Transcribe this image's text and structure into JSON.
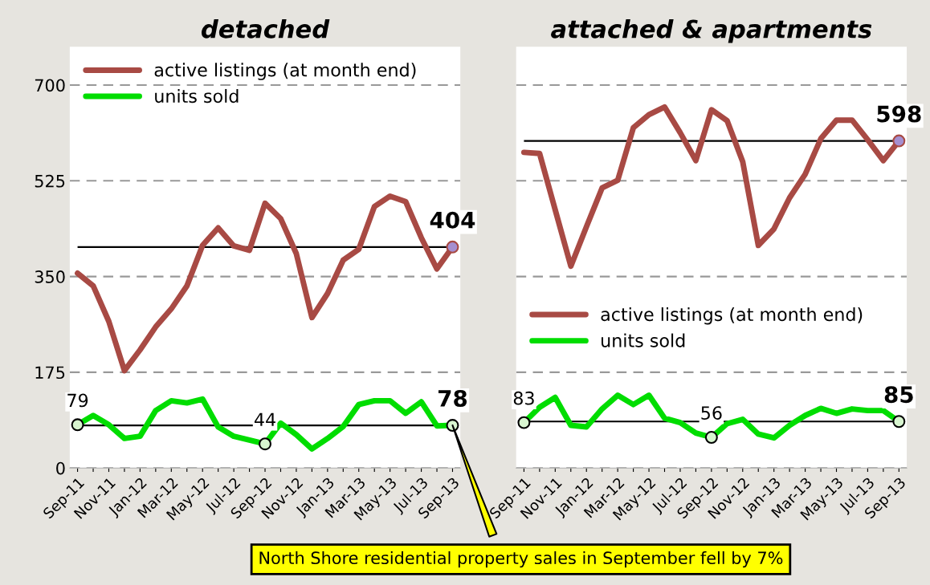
{
  "chart_data": [
    {
      "type": "line",
      "title": "detached",
      "categories": [
        "Sep-11",
        null,
        "Nov-11",
        null,
        "Jan-12",
        null,
        "Mar-12",
        null,
        "May-12",
        null,
        "Jul-12",
        null,
        "Sep-12",
        null,
        "Nov-12",
        null,
        "Jan-13",
        null,
        "Mar-13",
        null,
        "May-13",
        null,
        "Jul-13",
        null,
        "Sep-13"
      ],
      "series": [
        {
          "name": "active listings (at month end)",
          "color": "#a84a44",
          "values": [
            356,
            333,
            268,
            178,
            216,
            258,
            291,
            333,
            407,
            439,
            406,
            398,
            484,
            456,
            392,
            275,
            319,
            380,
            400,
            478,
            497,
            487,
            421,
            364,
            404
          ],
          "value_labels": [
            null,
            null,
            null,
            null,
            null,
            null,
            null,
            null,
            null,
            null,
            null,
            null,
            null,
            null,
            null,
            null,
            null,
            null,
            null,
            null,
            null,
            null,
            null,
            null,
            "404"
          ]
        },
        {
          "name": "units sold",
          "color": "#00dd00",
          "values": [
            79,
            96,
            79,
            54,
            58,
            105,
            123,
            119,
            126,
            75,
            58,
            51,
            44,
            82,
            61,
            35,
            54,
            76,
            116,
            123,
            123,
            100,
            121,
            77,
            78
          ],
          "value_labels": [
            "79",
            null,
            null,
            null,
            null,
            null,
            null,
            null,
            null,
            null,
            null,
            null,
            "44",
            null,
            null,
            null,
            null,
            null,
            null,
            null,
            null,
            null,
            null,
            null,
            "78"
          ]
        }
      ],
      "ylim": [
        0,
        770
      ],
      "yticks": [
        0,
        175,
        350,
        525,
        700
      ],
      "grid": "y",
      "legend": "upper left",
      "line_style": "solid",
      "ref_lines": [
        {
          "axis": "y",
          "value": 404,
          "color": "#000000"
        },
        {
          "axis": "y",
          "value": 78,
          "color": "#000000"
        }
      ],
      "annotations": [
        "North Shore residential property sales in September fell by 7%"
      ]
    },
    {
      "type": "line",
      "title": "attached & apartments",
      "categories": [
        "Sep-11",
        null,
        "Nov-11",
        null,
        "Jan-12",
        null,
        "Mar-12",
        null,
        "May-12",
        null,
        "Jul-12",
        null,
        "Sep-12",
        null,
        "Nov-12",
        null,
        "Jan-13",
        null,
        "Mar-13",
        null,
        "May-13",
        null,
        "Jul-13",
        null,
        "Sep-13"
      ],
      "series": [
        {
          "name": "active listings (at month end)",
          "color": "#a84a44",
          "values": [
            577,
            575,
            472,
            369,
            441,
            512,
            526,
            622,
            646,
            660,
            613,
            562,
            655,
            635,
            560,
            407,
            437,
            494,
            537,
            602,
            636,
            636,
            600,
            562,
            598
          ],
          "value_labels": [
            null,
            null,
            null,
            null,
            null,
            null,
            null,
            null,
            null,
            null,
            null,
            null,
            null,
            null,
            null,
            null,
            null,
            null,
            null,
            null,
            null,
            null,
            null,
            null,
            "598"
          ]
        },
        {
          "name": "units sold",
          "color": "#00dd00",
          "values": [
            83,
            111,
            129,
            78,
            75,
            108,
            133,
            116,
            133,
            91,
            83,
            64,
            56,
            81,
            89,
            62,
            55,
            78,
            96,
            109,
            100,
            108,
            105,
            105,
            85
          ],
          "value_labels": [
            "83",
            null,
            null,
            null,
            null,
            null,
            null,
            null,
            null,
            null,
            null,
            null,
            "56",
            null,
            null,
            null,
            null,
            null,
            null,
            null,
            null,
            null,
            null,
            null,
            "85"
          ]
        }
      ],
      "ylim": [
        0,
        770
      ],
      "yticks": [
        0,
        175,
        350,
        525,
        700
      ],
      "grid": "y",
      "legend": "center left",
      "line_style": "solid",
      "tick_labels": "x",
      "ref_lines": [
        {
          "axis": "y",
          "value": 598,
          "color": "#000000"
        },
        {
          "axis": "y",
          "value": 85,
          "color": "#000000"
        }
      ]
    }
  ]
}
